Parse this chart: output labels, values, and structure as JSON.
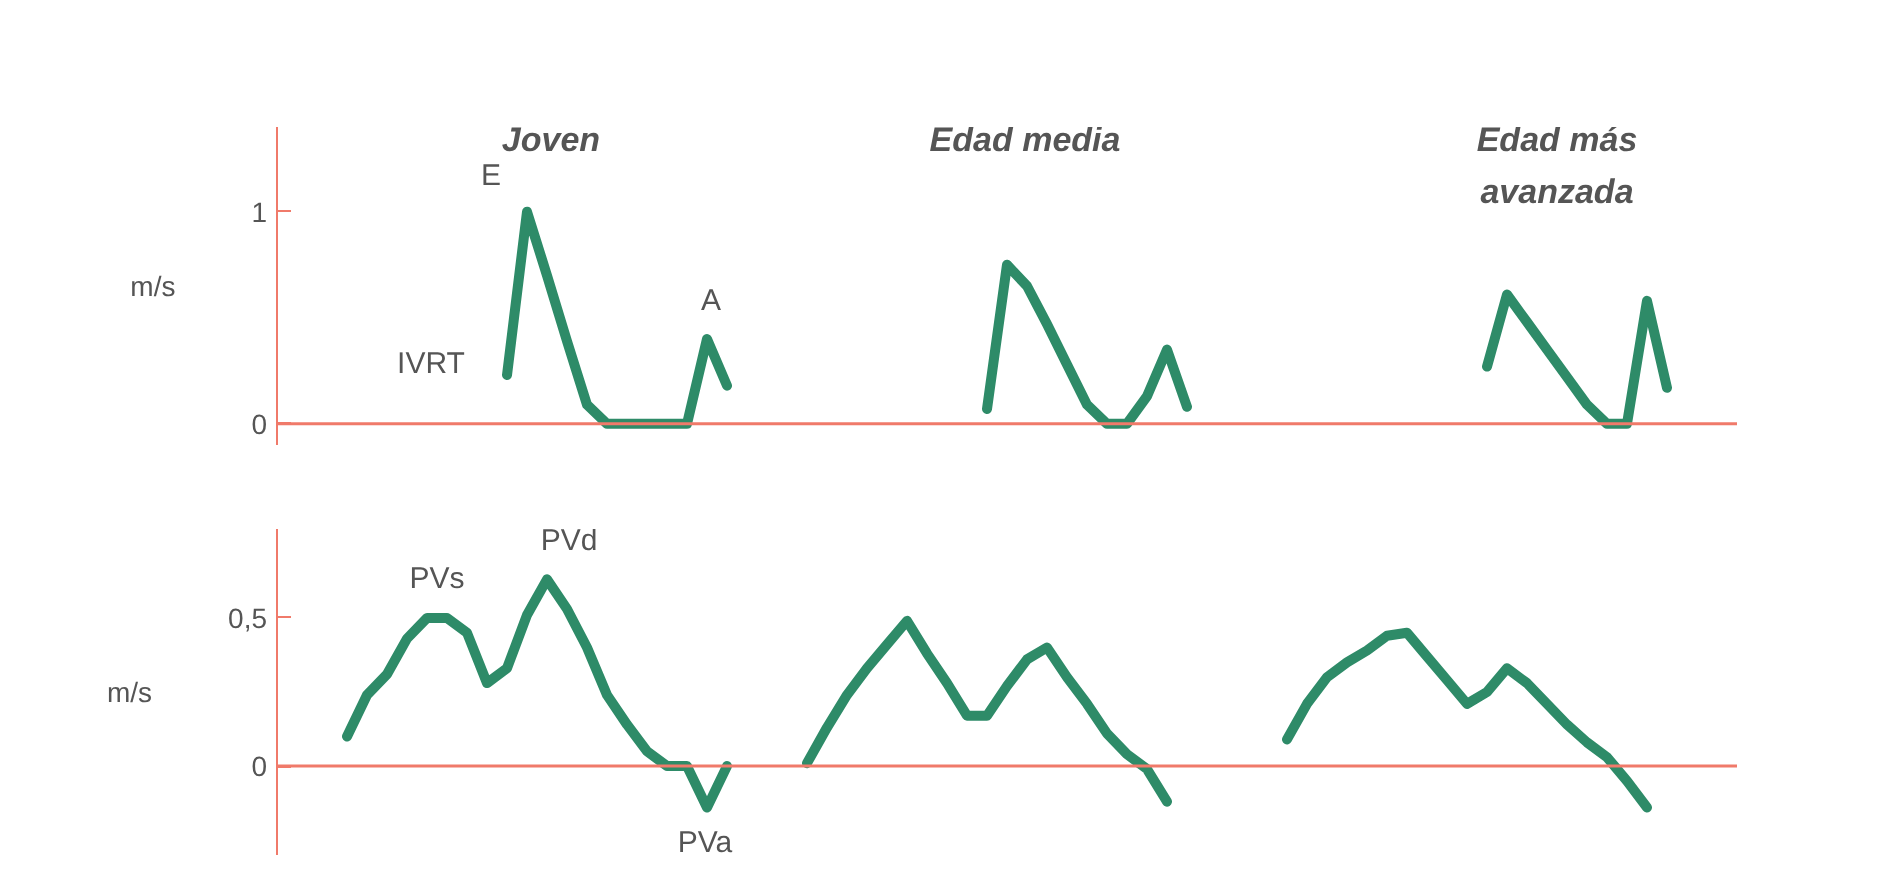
{
  "chart_data": [
    {
      "type": "line",
      "ylabel": "m/s",
      "ylim": [
        -0.1,
        1.4
      ],
      "yticks": [
        0,
        1
      ],
      "tick_labels": "y",
      "grid": false,
      "marker": "none",
      "line_style": "solid",
      "ref_lines": [
        {
          "axis": "y",
          "value": 0,
          "color": "#f07a6a"
        }
      ],
      "annotations": [
        "Joven",
        "Edad media",
        "Edad más\navanzada",
        "E",
        "A",
        "IVRT"
      ],
      "categories": [
        null,
        null,
        null,
        null,
        null,
        null,
        null,
        null,
        null,
        null,
        null,
        null,
        null,
        null,
        null,
        null,
        null,
        null,
        null,
        null,
        null,
        null,
        null,
        null,
        null,
        null,
        null,
        null,
        null,
        null,
        null,
        null,
        null,
        null,
        null,
        null,
        null,
        null,
        null,
        null,
        null,
        null,
        null,
        null,
        null,
        null,
        null,
        null,
        null,
        null,
        null,
        null,
        null,
        null,
        null,
        null,
        null,
        null,
        null,
        null,
        null,
        null,
        null,
        null,
        null,
        null,
        null,
        null,
        null,
        null,
        null,
        null,
        null
      ],
      "series": [
        {
          "color": "#2e8b68",
          "values": [
            null,
            null,
            null,
            null,
            null,
            null,
            null,
            null,
            null,
            null,
            null,
            0.23,
            1.0,
            0.7,
            0.39,
            0.09,
            0,
            0,
            0,
            0,
            0,
            0.4,
            0.18,
            null,
            null,
            null,
            null,
            null,
            null,
            null,
            null,
            null,
            null,
            null,
            null,
            0.07,
            0.75,
            0.65,
            0.47,
            0.28,
            0.09,
            0,
            0,
            0.13,
            0.35,
            0.08,
            null,
            null,
            null,
            null,
            null,
            null,
            null,
            null,
            null,
            null,
            null,
            null,
            null,
            null,
            0.27,
            0.61,
            0.48,
            0.35,
            0.22,
            0.09,
            0,
            0,
            0.58,
            0.17,
            null,
            null,
            null
          ]
        }
      ]
    },
    {
      "type": "line",
      "ylabel": "m/s",
      "ylim": [
        -0.3,
        0.8
      ],
      "yticks": [
        0,
        {
          "value": 0.5,
          "label": "0,5"
        }
      ],
      "tick_labels": "y",
      "grid": false,
      "marker": "none",
      "line_style": "solid",
      "ref_lines": [
        {
          "axis": "y",
          "value": 0,
          "color": "#f07a6a"
        }
      ],
      "annotations": [
        "PVs",
        "PVd",
        "PVa"
      ],
      "categories": [
        null,
        null,
        null,
        null,
        null,
        null,
        null,
        null,
        null,
        null,
        null,
        null,
        null,
        null,
        null,
        null,
        null,
        null,
        null,
        null,
        null,
        null,
        null,
        null,
        null,
        null,
        null,
        null,
        null,
        null,
        null,
        null,
        null,
        null,
        null,
        null,
        null,
        null,
        null,
        null,
        null,
        null,
        null,
        null,
        null,
        null,
        null,
        null,
        null,
        null,
        null,
        null,
        null,
        null,
        null,
        null,
        null,
        null,
        null,
        null,
        null,
        null,
        null,
        null,
        null,
        null,
        null,
        null,
        null,
        null,
        null,
        null,
        null
      ],
      "series": [
        {
          "color": "#2e8b68",
          "values": [
            null,
            null,
            null,
            0.1,
            0.24,
            0.31,
            0.43,
            0.5,
            0.5,
            0.45,
            0.28,
            0.33,
            0.51,
            0.63,
            0.53,
            0.4,
            0.24,
            0.14,
            0.05,
            0,
            0,
            -0.14,
            0,
            null,
            null,
            null,
            0.01,
            0.13,
            0.24,
            0.33,
            0.41,
            0.49,
            0.38,
            0.28,
            0.17,
            0.17,
            0.27,
            0.36,
            0.4,
            0.3,
            0.21,
            0.11,
            0.04,
            -0.01,
            -0.12,
            null,
            null,
            null,
            null,
            null,
            0.09,
            0.21,
            0.3,
            0.35,
            0.39,
            0.44,
            0.45,
            0.37,
            0.29,
            0.21,
            0.25,
            0.33,
            0.28,
            0.21,
            0.14,
            0.08,
            0.03,
            -0.05,
            -0.14,
            null,
            null,
            null,
            null
          ]
        }
      ]
    }
  ]
}
